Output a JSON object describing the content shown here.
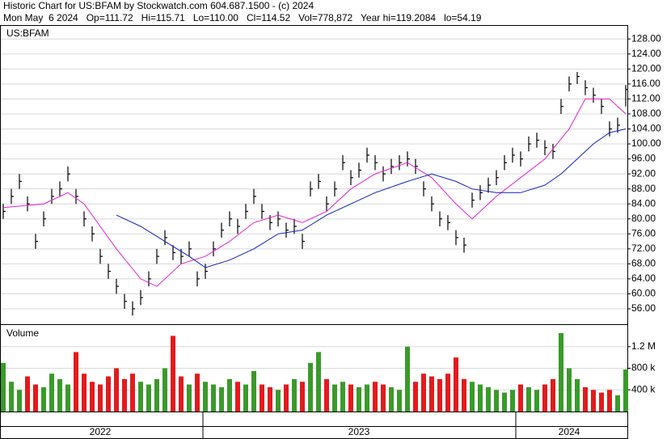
{
  "chart_data": {
    "type": "ohlc",
    "title": "Historic Chart for US:BFAM by Stockwatch.com 604.687.1500 - (c) 2024",
    "subtitle": "Mon May  6 2024   Op=111.72   Hi=115.71   Lo=110.00   Cl=114.52   Vol=778,872   Year hi=119.2084   lo=54.19",
    "symbol_label": "US:BFAM",
    "x": [
      0,
      1,
      2,
      3,
      4,
      5,
      6,
      7,
      8,
      9,
      10,
      11,
      12,
      13,
      14,
      15,
      16,
      17,
      18,
      19,
      20,
      21,
      22,
      23,
      24,
      25,
      26,
      27,
      28,
      29,
      30,
      31,
      32,
      33,
      34,
      35,
      36,
      37,
      38,
      39,
      40,
      41,
      42,
      43,
      44,
      45,
      46,
      47,
      48,
      49,
      50,
      51,
      52,
      53,
      54,
      55,
      56,
      57,
      58,
      59,
      60,
      61,
      62,
      63,
      64,
      65,
      66,
      67,
      68,
      69,
      70,
      71,
      72,
      73,
      74,
      75,
      76,
      77
    ],
    "xlim": [
      -0.3,
      77.2
    ],
    "close": [
      82,
      86,
      90,
      84,
      74,
      80,
      86,
      88,
      92,
      86,
      80,
      76,
      70,
      66,
      62,
      58,
      56,
      59,
      64,
      70,
      75,
      71,
      70,
      72,
      64,
      66,
      72,
      77,
      80,
      78,
      82,
      86,
      82,
      79,
      80,
      77,
      78,
      74,
      88,
      90,
      84,
      88,
      95,
      91,
      93,
      97,
      95,
      92,
      94,
      95,
      96,
      94,
      88,
      84,
      80,
      79,
      75,
      73,
      85,
      87,
      89,
      91,
      95,
      97,
      96,
      100,
      101,
      99,
      98,
      110,
      116,
      118,
      115,
      113,
      110,
      104,
      105,
      114.52
    ],
    "high": [
      84,
      88,
      92,
      86,
      76,
      82,
      88,
      90,
      94,
      88,
      82,
      78,
      72,
      68,
      64,
      60,
      58,
      61,
      66,
      72,
      77,
      73,
      72,
      74,
      66,
      68,
      74,
      79,
      82,
      80,
      84,
      88,
      84,
      81,
      82,
      79,
      80,
      76,
      90,
      92,
      86,
      90,
      97,
      93,
      95,
      99,
      97,
      94,
      96,
      97,
      98,
      96,
      90,
      86,
      82,
      81,
      77,
      75,
      87,
      89,
      91,
      93,
      97,
      99,
      98,
      102,
      103,
      101,
      100,
      112,
      118,
      119.2,
      117,
      115,
      112,
      106,
      107,
      115.71
    ],
    "low": [
      80,
      84,
      88,
      82,
      72,
      78,
      84,
      86,
      90,
      84,
      78,
      74,
      68,
      64,
      60,
      56,
      54.19,
      57,
      62,
      68,
      73,
      69,
      68,
      70,
      62,
      64,
      70,
      75,
      78,
      76,
      80,
      84,
      80,
      77,
      78,
      75,
      76,
      72,
      86,
      88,
      82,
      86,
      93,
      89,
      91,
      95,
      93,
      90,
      92,
      93,
      94,
      92,
      86,
      82,
      78,
      77,
      73,
      71,
      83,
      85,
      87,
      89,
      93,
      95,
      94,
      98,
      99,
      97,
      96,
      108,
      114,
      116,
      113,
      111,
      108,
      102,
      103,
      110
    ],
    "bar_color": "#000000",
    "moving_averages": [
      {
        "color": "#e020d0",
        "x": [
          0,
          5,
          8,
          10,
          14,
          17,
          19,
          22,
          25,
          28,
          31,
          34,
          37,
          40,
          43,
          46,
          50,
          53,
          56,
          58,
          61,
          64,
          67,
          70,
          72,
          75,
          77
        ],
        "values": [
          83,
          84,
          87,
          84,
          72,
          64,
          62,
          68,
          70,
          74,
          79,
          81,
          79,
          82,
          88,
          92,
          95,
          91,
          84,
          80,
          86,
          91,
          96,
          104,
          112,
          112,
          108
        ]
      },
      {
        "color": "#1020c0",
        "x": [
          14,
          17,
          20,
          23,
          25,
          28,
          31,
          34,
          37,
          40,
          43,
          46,
          50,
          53,
          56,
          58,
          61,
          64,
          67,
          69,
          71,
          73,
          75,
          77
        ],
        "values": [
          81,
          78,
          74,
          70,
          67,
          69,
          72,
          76,
          77,
          81,
          84,
          87,
          90,
          92,
          90,
          88,
          87,
          87,
          89,
          92,
          96,
          100,
          103,
          104
        ]
      }
    ],
    "ylim": [
      51.9,
      131.5
    ],
    "yticks": [
      {
        "value": 56,
        "label": "56.00"
      },
      {
        "value": 60,
        "label": "60.00"
      },
      {
        "value": 64,
        "label": "64.00"
      },
      {
        "value": 68,
        "label": "68.00"
      },
      {
        "value": 72,
        "label": "72.00"
      },
      {
        "value": 76,
        "label": "76.00"
      },
      {
        "value": 80,
        "label": "80.00"
      },
      {
        "value": 84,
        "label": "84.00"
      },
      {
        "value": 88,
        "label": "88.00"
      },
      {
        "value": 92,
        "label": "92.00"
      },
      {
        "value": 96,
        "label": "96.00"
      },
      {
        "value": 100,
        "label": "100.00"
      },
      {
        "value": 104,
        "label": "104.00"
      },
      {
        "value": 108,
        "label": "108.00"
      },
      {
        "value": 112,
        "label": "112.00"
      },
      {
        "value": 116,
        "label": "116.00"
      },
      {
        "value": 120,
        "label": "120.00"
      },
      {
        "value": 124,
        "label": "124.00"
      },
      {
        "value": 128,
        "label": "128.00"
      }
    ],
    "grid": true,
    "volume": {
      "label": "Volume",
      "up_color": "#3a9a2a",
      "down_color": "#e31a1c",
      "values": [
        900000,
        550000,
        400000,
        650000,
        500000,
        450000,
        700000,
        600000,
        500000,
        1100000,
        700000,
        550000,
        500000,
        650000,
        800000,
        600000,
        700000,
        550000,
        500000,
        600000,
        800000,
        1400000,
        650000,
        500000,
        700000,
        550000,
        500000,
        450000,
        600000,
        550000,
        500000,
        750000,
        500000,
        450000,
        400000,
        500000,
        600000,
        550000,
        900000,
        1100000,
        600000,
        500000,
        550000,
        500000,
        450000,
        500000,
        550000,
        500000,
        450000,
        400000,
        1200000,
        550000,
        700000,
        650000,
        600000,
        700000,
        1000000,
        600000,
        550000,
        500000,
        450000,
        400000,
        350000,
        400000,
        500000,
        450000,
        400000,
        500000,
        600000,
        1450000,
        800000,
        600000,
        450000,
        400000,
        350000,
        400000,
        300000,
        778872
      ],
      "ylim": [
        0,
        1600000
      ],
      "yticks": [
        {
          "value": 400000,
          "label": "400 k"
        },
        {
          "value": 800000,
          "label": "800 k"
        },
        {
          "value": 1200000,
          "label": "1.2 M"
        }
      ]
    },
    "years": [
      {
        "label": "2022",
        "x": 12
      },
      {
        "label": "2023",
        "x": 44
      },
      {
        "label": "2024",
        "x": 70
      }
    ],
    "year_breaks": [
      24.7,
      63.4
    ]
  }
}
